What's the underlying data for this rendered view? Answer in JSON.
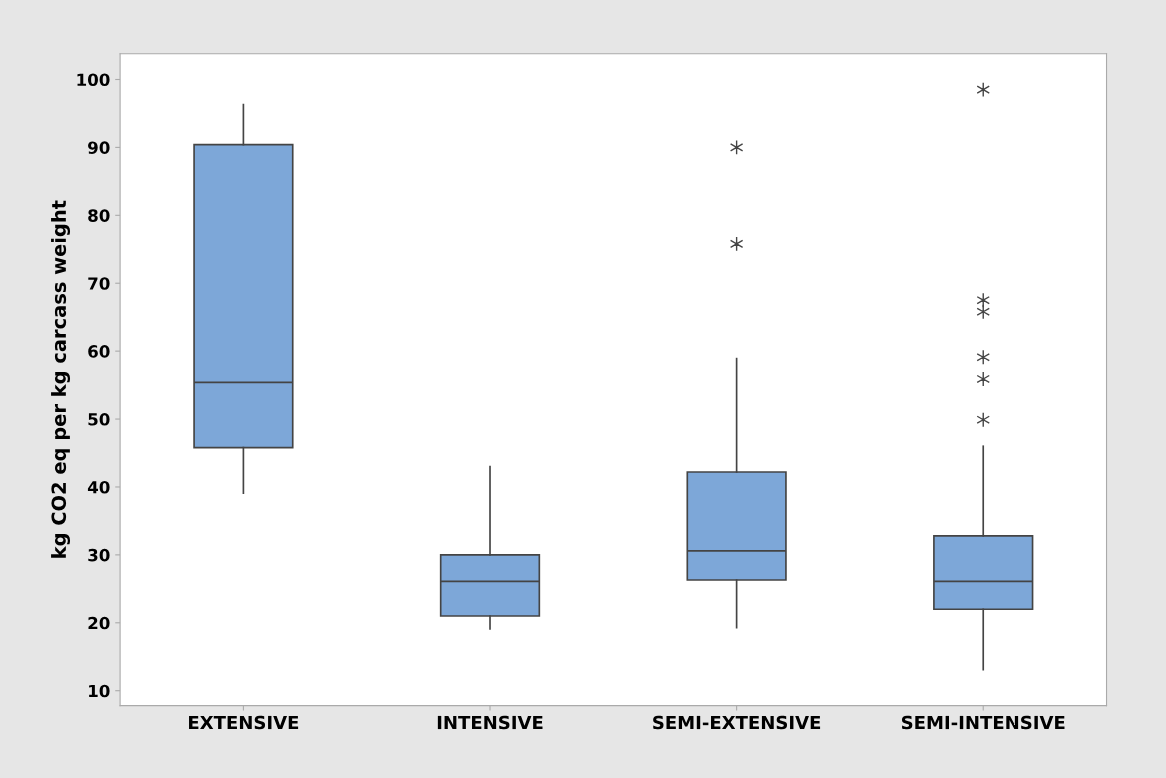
{
  "chart_data": {
    "type": "box",
    "ylabel": "kg CO2 eq per kg carcass weight",
    "categories": [
      "EXTENSIVE",
      "INTENSIVE",
      "SEMI-EXTENSIVE",
      "SEMI-INTENSIVE"
    ],
    "color": "#7da7d8",
    "boxes": [
      {
        "low": 39.1,
        "q1": 45.8,
        "median": 55.4,
        "q3": 90.4,
        "high": 96.3
      },
      {
        "low": 19.1,
        "q1": 21.0,
        "median": 26.1,
        "q3": 30.0,
        "high": 43.0
      },
      {
        "low": 19.3,
        "q1": 26.3,
        "median": 30.6,
        "q3": 42.2,
        "high": 58.9,
        "outliers": [
          75.8,
          90.0
        ]
      },
      {
        "low": 13.1,
        "q1": 22.0,
        "median": 26.1,
        "q3": 32.8,
        "high": 46.0,
        "outliers": [
          49.9,
          55.9,
          59.1,
          65.8,
          67.5,
          98.5
        ]
      }
    ],
    "ylim": [
      7.8,
      103.8
    ],
    "yticks": [
      10,
      20,
      30,
      40,
      50,
      60,
      70,
      80,
      90,
      100
    ],
    "grid": false,
    "legend": false
  }
}
